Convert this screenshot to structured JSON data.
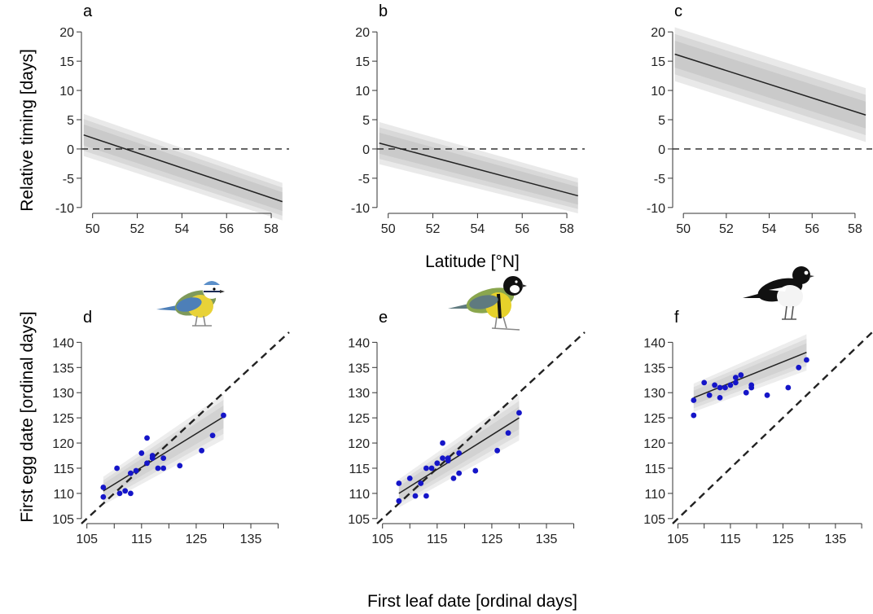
{
  "figure": {
    "ylabel_top": "Relative timing [days]",
    "xlabel_top": "Latitude [°N]",
    "ylabel_bottom": "First egg date [ordinal days]",
    "xlabel_bottom": "First leaf date [ordinal days]"
  },
  "birds": [
    {
      "name": "blue-tit-illustration",
      "crown": "#5b8fc9",
      "back": "#7f9a5a",
      "belly": "#e8d238",
      "wing": "#4d7fb8"
    },
    {
      "name": "great-tit-illustration",
      "crown": "#111111",
      "back": "#8aa64e",
      "belly": "#e6d12a",
      "wing": "#5f7a7f"
    },
    {
      "name": "pied-flycatcher-illustration",
      "crown": "#111111",
      "back": "#111111",
      "belly": "#f4f4f4",
      "wing": "#111111"
    }
  ],
  "colors": {
    "points": "#1515c8",
    "band": "#9a9a9a",
    "line": "#222222"
  },
  "chart_data": [
    {
      "id": "a",
      "panel_label": "a",
      "type": "line",
      "xlim": [
        49.5,
        58.8
      ],
      "ylim": [
        -11,
        21
      ],
      "x_ticks": [
        50,
        52,
        54,
        56,
        58
      ],
      "y_ticks": [
        -10,
        -5,
        0,
        5,
        10,
        15,
        20
      ],
      "line": {
        "x": [
          49.6,
          58.5
        ],
        "y": [
          2.4,
          -9.0
        ]
      },
      "band_halfwidth": [
        3.6,
        3.2
      ],
      "reference_y": 0
    },
    {
      "id": "b",
      "panel_label": "b",
      "type": "line",
      "xlim": [
        49.5,
        58.8
      ],
      "ylim": [
        -11,
        21
      ],
      "x_ticks": [
        50,
        52,
        54,
        56,
        58
      ],
      "y_ticks": [
        -10,
        -5,
        0,
        5,
        10,
        15,
        20
      ],
      "line": {
        "x": [
          49.6,
          58.5
        ],
        "y": [
          1.0,
          -8.0
        ]
      },
      "band_halfwidth": [
        3.6,
        3.0
      ],
      "reference_y": 0
    },
    {
      "id": "c",
      "panel_label": "c",
      "type": "line",
      "xlim": [
        49.5,
        58.8
      ],
      "ylim": [
        -11,
        21
      ],
      "x_ticks": [
        50,
        52,
        54,
        56,
        58
      ],
      "y_ticks": [
        -10,
        -5,
        0,
        5,
        10,
        15,
        20
      ],
      "line": {
        "x": [
          49.6,
          58.5
        ],
        "y": [
          16.2,
          5.8
        ]
      },
      "band_halfwidth": [
        4.6,
        4.6
      ],
      "reference_y": 0
    },
    {
      "id": "d",
      "panel_label": "d",
      "type": "scatter",
      "xlim": [
        104,
        142
      ],
      "ylim": [
        104,
        142
      ],
      "x_ticks": [
        105,
        115,
        125,
        135
      ],
      "x_minor": [
        110,
        120,
        130,
        140
      ],
      "y_ticks": [
        105,
        110,
        115,
        120,
        125,
        130,
        135,
        140
      ],
      "line": {
        "x": [
          108,
          130
        ],
        "y": [
          110.5,
          125.2
        ]
      },
      "band_halfwidth": [
        2.8,
        4.5
      ],
      "points": [
        [
          108,
          111.2
        ],
        [
          108,
          109.3
        ],
        [
          110.5,
          115
        ],
        [
          111,
          110
        ],
        [
          112,
          110.5
        ],
        [
          113,
          110
        ],
        [
          113,
          114
        ],
        [
          114,
          114.5
        ],
        [
          115,
          118
        ],
        [
          116,
          116
        ],
        [
          116,
          121
        ],
        [
          117,
          117
        ],
        [
          117,
          117.5
        ],
        [
          118,
          115
        ],
        [
          119,
          117
        ],
        [
          119,
          115
        ],
        [
          122,
          115.5
        ],
        [
          126,
          118.5
        ],
        [
          128,
          121.5
        ],
        [
          130,
          125.5
        ]
      ]
    },
    {
      "id": "e",
      "panel_label": "e",
      "type": "scatter",
      "xlim": [
        104,
        142
      ],
      "ylim": [
        104,
        142
      ],
      "x_ticks": [
        105,
        115,
        125,
        135
      ],
      "x_minor": [
        110,
        120,
        130,
        140
      ],
      "y_ticks": [
        105,
        110,
        115,
        120,
        125,
        130,
        135,
        140
      ],
      "line": {
        "x": [
          108,
          130
        ],
        "y": [
          110.0,
          125.0
        ]
      },
      "band_halfwidth": [
        2.8,
        4.5
      ],
      "points": [
        [
          108,
          112
        ],
        [
          108,
          108.5
        ],
        [
          110,
          113
        ],
        [
          111,
          109.5
        ],
        [
          112,
          112
        ],
        [
          113,
          109.5
        ],
        [
          113,
          115
        ],
        [
          114,
          115
        ],
        [
          115,
          116
        ],
        [
          116,
          117
        ],
        [
          116,
          120
        ],
        [
          117,
          117
        ],
        [
          117,
          116.5
        ],
        [
          118,
          113
        ],
        [
          119,
          118
        ],
        [
          119,
          114
        ],
        [
          122,
          114.5
        ],
        [
          126,
          118.5
        ],
        [
          128,
          122
        ],
        [
          130,
          126
        ]
      ]
    },
    {
      "id": "f",
      "panel_label": "f",
      "type": "scatter",
      "xlim": [
        104,
        142
      ],
      "ylim": [
        104,
        142
      ],
      "x_ticks": [
        105,
        115,
        125,
        135
      ],
      "x_minor": [
        110,
        120,
        130,
        140
      ],
      "y_ticks": [
        105,
        110,
        115,
        120,
        125,
        130,
        135,
        140
      ],
      "line": {
        "x": [
          108,
          129.5
        ],
        "y": [
          129.0,
          138.0
        ]
      },
      "band_halfwidth": [
        2.8,
        3.6
      ],
      "points": [
        [
          108,
          128.5
        ],
        [
          108,
          125.5
        ],
        [
          110,
          132
        ],
        [
          111,
          129.5
        ],
        [
          112,
          131.5
        ],
        [
          113,
          129
        ],
        [
          113,
          131
        ],
        [
          114,
          131
        ],
        [
          115,
          131.5
        ],
        [
          116,
          133
        ],
        [
          116,
          132
        ],
        [
          117,
          133.5
        ],
        [
          118,
          130
        ],
        [
          119,
          131
        ],
        [
          119,
          131.5
        ],
        [
          122,
          129.5
        ],
        [
          126,
          131
        ],
        [
          128,
          135
        ],
        [
          129.5,
          136.5
        ]
      ]
    }
  ]
}
